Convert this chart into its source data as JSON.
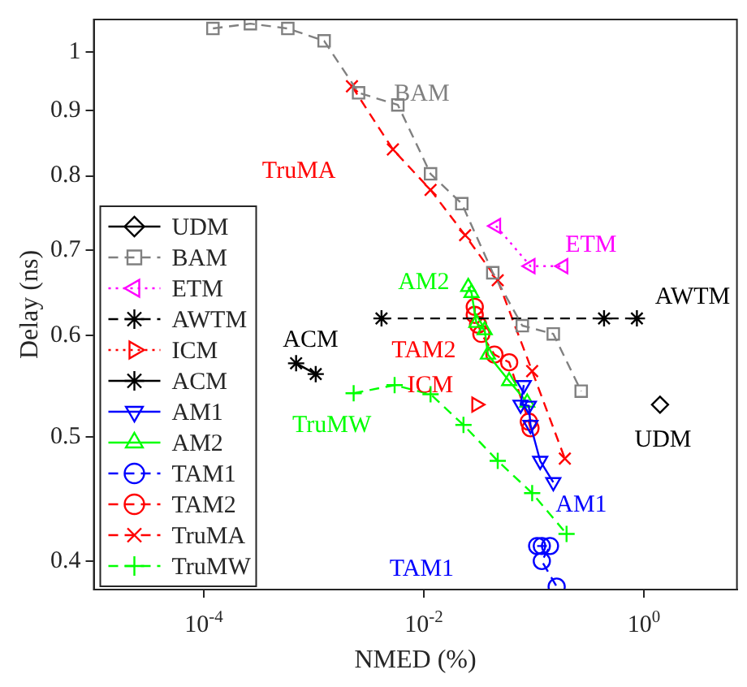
{
  "chart_data": {
    "type": "line",
    "xlabel": "NMED (%)",
    "ylabel": "Delay (ns)",
    "log": "xy",
    "xlim": [
      1e-05,
      7
    ],
    "ylim": [
      0.38,
      1.06
    ],
    "xticks": [
      {
        "value": 0.0001,
        "label": "10$^{-4}$"
      },
      {
        "value": 0.01,
        "label": "10$^{-2}$"
      },
      {
        "value": 1,
        "label": "10$^{0}$"
      }
    ],
    "yticks": [
      0.4,
      0.5,
      0.6,
      0.7,
      0.8,
      0.9,
      1
    ],
    "grid": false,
    "legend": "bottom left",
    "series": [
      {
        "name": "UDM",
        "color": "#000000",
        "marker": "diamond",
        "line_style": "solid",
        "x": [
          1.4
        ],
        "values": [
          0.53
        ]
      },
      {
        "name": "BAM",
        "color": "#808080",
        "marker": "square",
        "line_style": "dashed",
        "x": [
          0.000121,
          0.000265,
          0.00058,
          0.00124,
          0.00255,
          0.0058,
          0.0115,
          0.0221,
          0.0423,
          0.0784,
          0.15,
          0.269
        ],
        "values": [
          1.043,
          1.052,
          1.043,
          1.02,
          0.929,
          0.909,
          0.803,
          0.761,
          0.672,
          0.611,
          0.602,
          0.543
        ]
      },
      {
        "name": "ETM",
        "color": "#ff00ff",
        "marker": "triangle-left",
        "line_style": "dotted",
        "x": [
          0.0453,
          0.0931,
          0.185
        ],
        "values": [
          0.731,
          0.68,
          0.68
        ]
      },
      {
        "name": "AWTM",
        "color": "#000000",
        "marker": "cross",
        "line_style": "dashed",
        "x": [
          0.00412,
          0.434,
          0.863
        ],
        "values": [
          0.619,
          0.619,
          0.619
        ]
      },
      {
        "name": "ICM",
        "color": "#ff0000",
        "marker": "triangle-right",
        "line_style": "dotted",
        "x": [
          0.03
        ],
        "values": [
          0.53
        ]
      },
      {
        "name": "ACM",
        "color": "#000000",
        "marker": "cross",
        "line_style": "solid",
        "x": [
          0.00069,
          0.00104
        ],
        "values": [
          0.571,
          0.56
        ]
      },
      {
        "name": "AM1",
        "color": "#0000ff",
        "marker": "triangle-down",
        "line_style": "solid",
        "x": [
          0.0809,
          0.0757,
          0.0899,
          0.0931,
          0.114,
          0.15
        ],
        "values": [
          0.549,
          0.53,
          0.529,
          0.511,
          0.479,
          0.461
        ]
      },
      {
        "name": "AM2",
        "color": "#00ff00",
        "marker": "triangle",
        "line_style": "solid",
        "x": [
          0.0253,
          0.0271,
          0.03,
          0.0357,
          0.0382,
          0.0596,
          0.0869
        ],
        "values": [
          0.655,
          0.648,
          0.614,
          0.606,
          0.58,
          0.553,
          0.532
        ]
      },
      {
        "name": "TAM1",
        "color": "#0000ff",
        "marker": "circle",
        "line_style": "dashed",
        "x": [
          0.107,
          0.118,
          0.14,
          0.118,
          0.161
        ],
        "values": [
          0.411,
          0.411,
          0.411,
          0.4,
          0.382
        ]
      },
      {
        "name": "TAM2",
        "color": "#ff0000",
        "marker": "circle",
        "line_style": "dashed",
        "x": [
          0.029,
          0.029,
          0.0311,
          0.0333,
          0.0438,
          0.0596,
          0.0899,
          0.0931
        ],
        "values": [
          0.632,
          0.623,
          0.612,
          0.602,
          0.58,
          0.572,
          0.514,
          0.508
        ]
      },
      {
        "name": "TruMA",
        "color": "#ff0000",
        "marker": "x",
        "line_style": "dashed",
        "x": [
          0.00222,
          0.00523,
          0.0115,
          0.0237,
          0.0469,
          0.0964,
          0.191
        ],
        "values": [
          0.94,
          0.839,
          0.78,
          0.719,
          0.663,
          0.563,
          0.481
        ]
      },
      {
        "name": "TruMW",
        "color": "#00ff00",
        "marker": "plus",
        "line_style": "dashed",
        "x": [
          0.0023,
          0.00542,
          0.0115,
          0.0229,
          0.0469,
          0.0964,
          0.198
        ],
        "values": [
          0.541,
          0.549,
          0.54,
          0.511,
          0.479,
          0.452,
          0.42
        ]
      }
    ],
    "annotations": [
      "BAM",
      "TruMA",
      "ETM",
      "AWTM",
      "AM2",
      "ACM",
      "TAM2",
      "ICM",
      "TruMW",
      "UDM",
      "AM1",
      "TAM1"
    ]
  }
}
